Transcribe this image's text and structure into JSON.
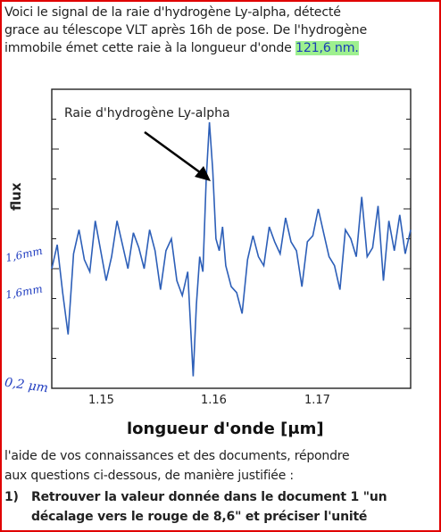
{
  "intro": {
    "line1": "Voici le signal de la raie d'hydrogène Ly-alpha, détecté",
    "line2": "grace au télescope VLT après 16h de pose. De l'hydrogène",
    "line3_before": "immobile émet cette raie à la longueur d'onde ",
    "line3_highlight": "121,6 nm.",
    "highlight_color": "#9ef08f"
  },
  "annotations": {
    "tick_1": "1,6mm",
    "tick_2": "1,6mm",
    "tick_3": "0,2 μm",
    "color": "#1f3cc0"
  },
  "chart_data": {
    "type": "line",
    "title": "",
    "xlabel": "longueur d'onde [μm]",
    "ylabel": "flux",
    "xlim": [
      1.146,
      1.179
    ],
    "ylim": [
      0,
      10
    ],
    "x_ticks": [
      "1.15",
      "1.16",
      "1.17"
    ],
    "x_tick_values": [
      1.15,
      1.16,
      1.17
    ],
    "annotation": {
      "text": "Raie d'hydrogène Ly-alpha",
      "points_to_x": 1.1605
    },
    "line_color": "#2d5fb8",
    "series": [
      {
        "name": "",
        "x": [
          1.146,
          1.1465,
          1.147,
          1.1475,
          1.148,
          1.1485,
          1.149,
          1.1495,
          1.15,
          1.1505,
          1.151,
          1.1515,
          1.152,
          1.1525,
          1.153,
          1.1535,
          1.154,
          1.1545,
          1.155,
          1.1555,
          1.156,
          1.1565,
          1.157,
          1.1575,
          1.158,
          1.1585,
          1.159,
          1.1593,
          1.1596,
          1.1599,
          1.1602,
          1.1605,
          1.1608,
          1.1611,
          1.1614,
          1.1617,
          1.162,
          1.1625,
          1.163,
          1.1635,
          1.164,
          1.1645,
          1.165,
          1.1655,
          1.166,
          1.1665,
          1.167,
          1.1675,
          1.168,
          1.1685,
          1.169,
          1.1695,
          1.17,
          1.1705,
          1.171,
          1.1715,
          1.172,
          1.1725,
          1.173,
          1.1735,
          1.174,
          1.1745,
          1.175,
          1.1755,
          1.176,
          1.1765,
          1.177,
          1.1775,
          1.178,
          1.1785,
          1.179
        ],
        "y": [
          4.0,
          4.8,
          3.2,
          1.8,
          4.5,
          5.3,
          4.3,
          3.9,
          5.6,
          4.6,
          3.6,
          4.4,
          5.6,
          4.8,
          4.0,
          5.2,
          4.7,
          4.0,
          5.3,
          4.6,
          3.3,
          4.6,
          5.0,
          3.6,
          3.1,
          3.9,
          0.4,
          2.8,
          4.4,
          3.9,
          7.0,
          8.9,
          7.3,
          5.0,
          4.6,
          5.4,
          4.1,
          3.4,
          3.2,
          2.5,
          4.3,
          5.1,
          4.4,
          4.1,
          5.4,
          4.9,
          4.5,
          5.7,
          4.9,
          4.6,
          3.4,
          4.9,
          5.1,
          6.0,
          5.2,
          4.4,
          4.1,
          3.3,
          5.3,
          5.0,
          4.4,
          6.4,
          4.4,
          4.7,
          6.1,
          3.6,
          5.6,
          4.6,
          5.8,
          4.5,
          5.3
        ]
      }
    ]
  },
  "body": {
    "line1": "l'aide de vos connaissances et des documents, répondre",
    "line2": "aux questions ci-dessous, de manière justifiée :",
    "q1_num": "1)",
    "q1_line1": "Retrouver la valeur donnée dans le document 1 \"un",
    "q1_line2": "décalage vers le rouge de 8,6\" et préciser l'unité"
  }
}
